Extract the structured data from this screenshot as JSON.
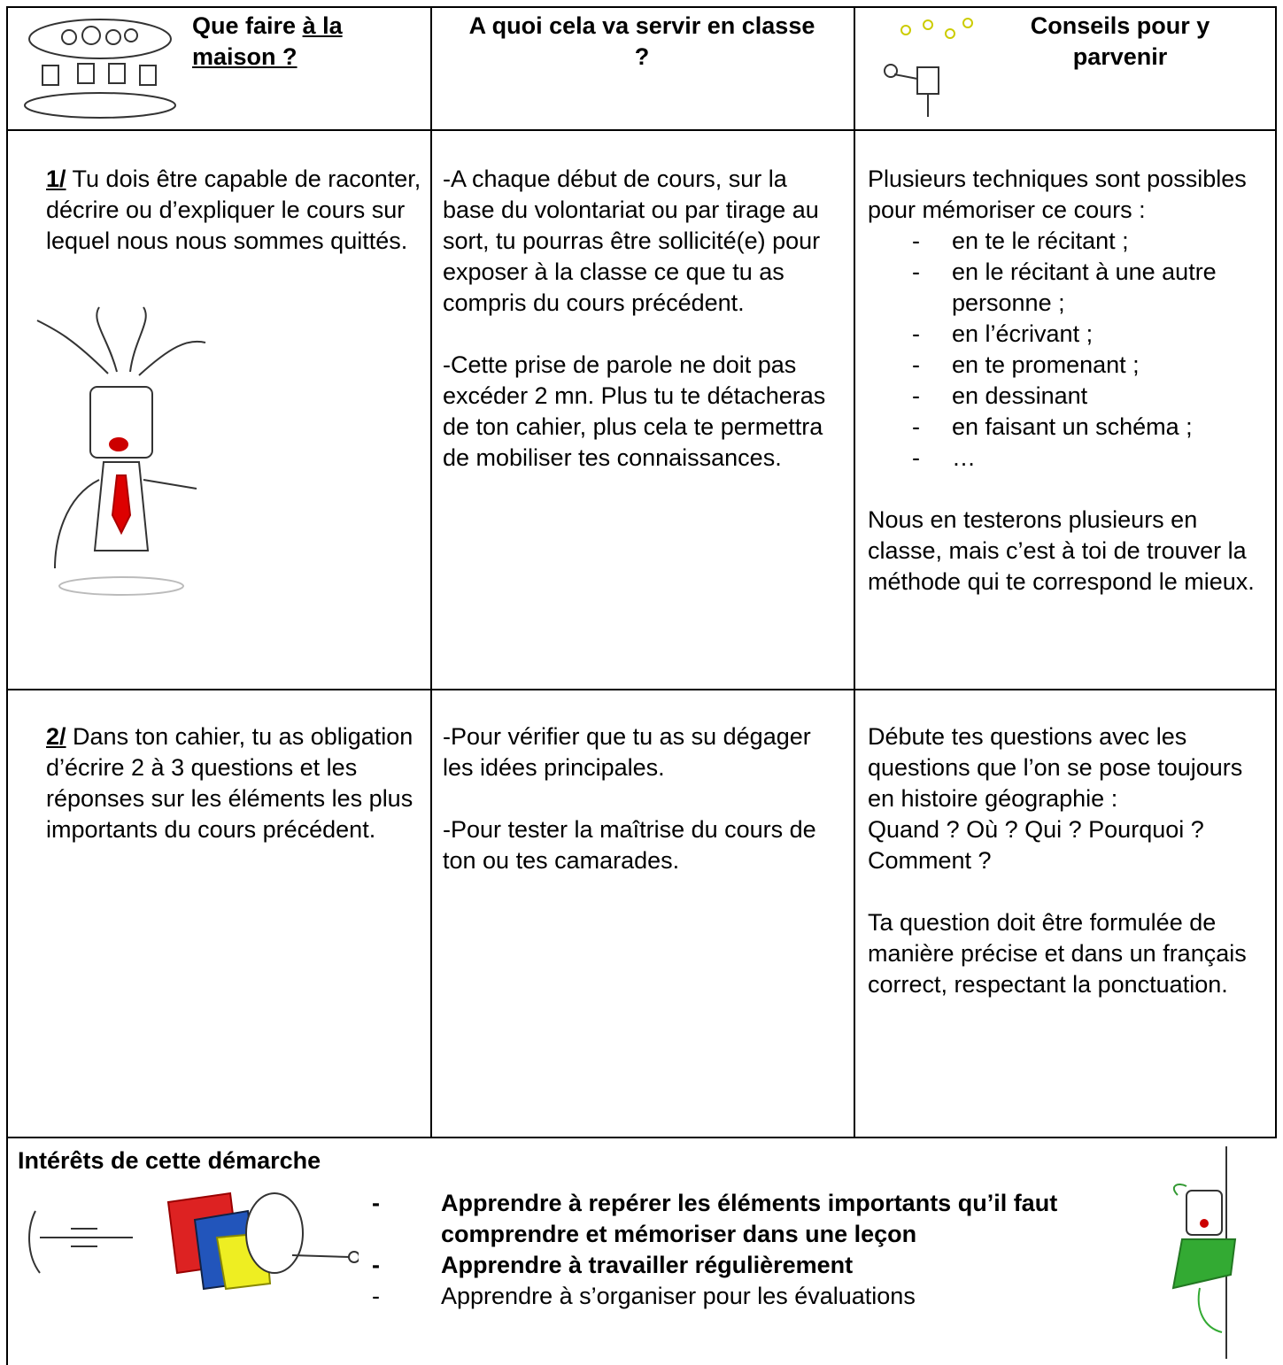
{
  "header": {
    "columns": [
      {
        "title": "Que faire",
        "title_underlined": "à la maison ?"
      },
      {
        "title": "A quoi cela va servir en classe ?"
      },
      {
        "title": "Conseils pour y parvenir"
      }
    ]
  },
  "rows": [
    {
      "number": "1/",
      "task": "Tu dois être capable de raconter, décrire ou d’expliquer le cours sur lequel nous nous sommes quittés.",
      "purpose": [
        "-A chaque début de cours, sur la base du volontariat ou par tirage au sort, tu pourras être sollicité(e) pour exposer à la classe ce que tu as compris du cours précédent.",
        "-Cette prise de parole ne doit pas excéder 2 mn. Plus tu te détacheras de ton cahier, plus cela te permettra de mobiliser tes connaissances."
      ],
      "advice": {
        "intro": "Plusieurs techniques sont possibles pour mémoriser ce cours :",
        "bullet": "-",
        "items": [
          "en te le récitant ;",
          "en le récitant à une autre personne ;",
          "en l’écrivant ;",
          "en te promenant ;",
          "en dessinant",
          "en faisant un schéma ;",
          "…"
        ],
        "outro": "Nous en testerons plusieurs en classe, mais c’est à toi de trouver la méthode qui te correspond le mieux."
      }
    },
    {
      "number": "2/",
      "task": "Dans ton cahier, tu as obligation d’écrire 2 à 3 questions et les réponses sur les éléments les plus importants du cours précédent.",
      "purpose": [
        "-Pour vérifier que tu as su dégager les idées principales.",
        "-Pour tester la maîtrise du cours de ton ou tes camarades."
      ],
      "advice": {
        "intro": "Débute tes questions avec les questions que l’on se pose toujours en histoire géographie :",
        "questions": "Quand ? Où ? Qui ? Pourquoi ? Comment ?",
        "outro": "Ta question doit être formulée de manière précise et dans un français correct, respectant la ponctuation."
      }
    }
  ],
  "benefits": {
    "title": "Intérêts de cette démarche",
    "bullet": "-",
    "items": [
      {
        "text": "Apprendre à repérer les éléments importants qu’il faut comprendre et mémoriser dans une leçon",
        "bold": true
      },
      {
        "text": "Apprendre à travailler régulièrement",
        "bold": true
      },
      {
        "text": "Apprendre à s’organiser pour les évaluations",
        "bold": false
      }
    ]
  }
}
